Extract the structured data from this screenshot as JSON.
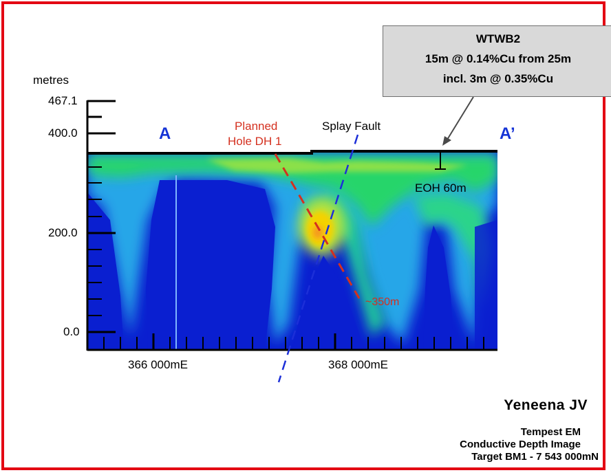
{
  "axis": {
    "y_unit": "metres",
    "y_ticks": [
      "467.1",
      "400.0",
      "200.0",
      "0.0"
    ],
    "x_ticks": [
      "366 000mE",
      "368 000mE"
    ]
  },
  "section": {
    "start": "A",
    "end": "A’"
  },
  "labels": {
    "planned_hole_line1": "Planned",
    "planned_hole_line2": "Hole DH 1",
    "splay_fault": "Splay Fault",
    "eoh": "EOH 60m",
    "hole_depth": "~350m"
  },
  "callout": {
    "title": "WTWB2",
    "line1": "15m @ 0.14%Cu from 25m",
    "line2": "incl. 3m @ 0.35%Cu"
  },
  "caption": {
    "project": "Yeneena JV",
    "line1": "Tempest EM",
    "line2": "Conductive Depth Image",
    "line3": "Target BM1 - 7 543 000mN"
  },
  "colors": {
    "frame": "#e30613",
    "section_letters": "#1533d6",
    "planned_hole": "#d4301f",
    "fault": "#1c2fd8",
    "low_conductivity": "#0a1fd0",
    "high_conductivity": "#f4d200"
  }
}
